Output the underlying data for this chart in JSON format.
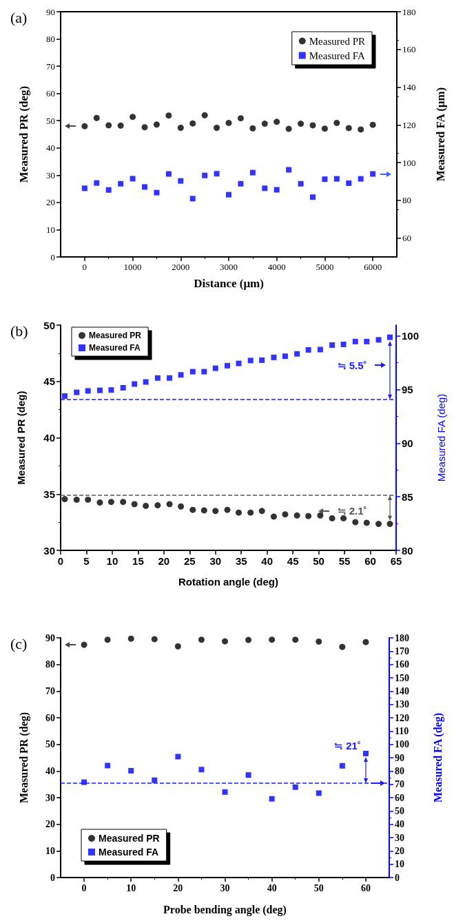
{
  "chart_data": [
    {
      "type": "scatter",
      "title": "(a)",
      "xlabel": "Distance (μm)",
      "ylabel": "Measured PR (deg)",
      "y2label": "Measured FA (μm)",
      "x": [
        0,
        250,
        500,
        750,
        1000,
        1250,
        1500,
        1750,
        2000,
        2250,
        2500,
        2750,
        3000,
        3250,
        3500,
        3750,
        4000,
        4250,
        4500,
        4750,
        5000,
        5250,
        5500,
        5750,
        6000
      ],
      "series": [
        {
          "name": "Measured PR",
          "color": "#000000",
          "marker": "circle",
          "values": [
            48.0,
            51.0,
            48.3,
            48.2,
            51.4,
            47.6,
            48.6,
            51.9,
            47.4,
            49.0,
            52.0,
            47.4,
            49.2,
            50.9,
            47.2,
            48.9,
            49.6,
            47.0,
            48.9,
            48.3,
            47.1,
            49.2,
            47.3,
            46.8,
            48.5
          ]
        },
        {
          "name": "Measured FA",
          "color": "#0000ff",
          "marker": "square",
          "axis": "y2",
          "values": [
            86.4,
            89.2,
            85.5,
            88.8,
            91.5,
            87.1,
            84.1,
            94.0,
            90.3,
            80.9,
            93.2,
            94.1,
            83.0,
            88.8,
            94.7,
            86.4,
            85.6,
            96.2,
            88.8,
            81.7,
            91.2,
            91.4,
            89.1,
            91.4,
            94.0
          ]
        }
      ],
      "xlim": [
        -500,
        6500
      ],
      "xticks": [
        0,
        1000,
        2000,
        3000,
        4000,
        5000,
        6000
      ],
      "ylim": [
        0,
        90
      ],
      "yticks": [
        0,
        10,
        20,
        30,
        40,
        50,
        60,
        70,
        80,
        90
      ],
      "y2lim": [
        50,
        180
      ],
      "y2ticks": [
        60,
        80,
        100,
        120,
        140,
        160,
        180
      ],
      "legend": "top right"
    },
    {
      "type": "scatter",
      "title": "(b)",
      "xlabel": "Rotation angle (deg)",
      "ylabel": "Measured PR (deg)",
      "y2label": "Measured FA (deg)",
      "x": [
        0.8,
        3.1,
        5.3,
        7.6,
        9.8,
        12.1,
        14.3,
        16.5,
        18.8,
        21.1,
        23.3,
        25.6,
        27.8,
        30.0,
        32.3,
        34.5,
        36.8,
        39.0,
        41.3,
        43.5,
        45.8,
        48.0,
        50.3,
        52.6,
        54.8,
        57.1,
        59.3,
        61.6,
        63.8
      ],
      "series": [
        {
          "name": "Measured PR",
          "color": "#000000",
          "marker": "circle",
          "values": [
            34.55,
            34.5,
            34.5,
            34.25,
            34.3,
            34.3,
            34.1,
            33.95,
            34.0,
            34.1,
            33.9,
            33.6,
            33.55,
            33.5,
            33.6,
            33.35,
            33.35,
            33.5,
            33.0,
            33.2,
            33.1,
            33.05,
            33.1,
            32.85,
            32.85,
            32.5,
            32.45,
            32.35,
            32.35
          ]
        },
        {
          "name": "Measured FA",
          "color": "#0000ff",
          "marker": "square",
          "axis": "y2",
          "values": [
            94.39,
            94.73,
            94.87,
            94.92,
            94.95,
            95.16,
            95.51,
            95.7,
            96.07,
            96.07,
            96.36,
            96.66,
            96.66,
            96.98,
            97.22,
            97.43,
            97.7,
            97.73,
            97.99,
            98.1,
            98.32,
            98.69,
            98.72,
            99.14,
            99.2,
            99.47,
            99.47,
            99.63,
            99.87
          ]
        }
      ],
      "xlim": [
        0,
        65
      ],
      "xticks": [
        0,
        5,
        10,
        15,
        20,
        25,
        30,
        35,
        40,
        45,
        50,
        55,
        60,
        65
      ],
      "ylim": [
        30,
        50
      ],
      "yticks": [
        30,
        35,
        40,
        45,
        50
      ],
      "y2lim": [
        80,
        101
      ],
      "y2ticks": [
        80,
        85,
        90,
        95,
        100
      ],
      "ref_lines": [
        {
          "axis": "y2",
          "value": 94.1,
          "color": "#1a1aff",
          "line_style": "dashed"
        },
        {
          "axis": "y",
          "value": 34.9,
          "color": "#555555",
          "line_style": "dashed"
        }
      ],
      "annotations": [
        "≒ 5.5˚",
        "≒ 2.1˚"
      ],
      "legend": "top left"
    },
    {
      "type": "scatter",
      "title": "(c)",
      "xlabel": "Probe bending angle (deg)",
      "ylabel": "Measured PR (deg)",
      "y2label": "Measured FA (deg)",
      "x": [
        0,
        5,
        10,
        15,
        20,
        25,
        30,
        35,
        40,
        45,
        50,
        55,
        60
      ],
      "series": [
        {
          "name": "Measured PR",
          "color": "#000000",
          "marker": "circle",
          "values": [
            87.4,
            89.3,
            89.7,
            89.5,
            86.8,
            89.3,
            88.7,
            89.2,
            89.3,
            89.3,
            88.6,
            86.6,
            88.4
          ]
        },
        {
          "name": "Measured FA",
          "color": "#0000ff",
          "marker": "square",
          "axis": "y2",
          "values": [
            71.6,
            84.1,
            80.2,
            73.1,
            90.8,
            81.1,
            64.2,
            77.0,
            59.1,
            67.9,
            63.4,
            83.9,
            93.1
          ]
        }
      ],
      "xlim": [
        -5,
        65
      ],
      "xticks": [
        0,
        10,
        20,
        30,
        40,
        50,
        60
      ],
      "ylim": [
        0,
        90
      ],
      "yticks": [
        0,
        10,
        20,
        30,
        40,
        50,
        60,
        70,
        80,
        90
      ],
      "y2lim": [
        0,
        180
      ],
      "y2ticks": [
        0,
        10,
        20,
        30,
        40,
        50,
        60,
        70,
        80,
        90,
        100,
        110,
        120,
        130,
        140,
        150,
        160,
        170,
        180
      ],
      "ref_lines": [
        {
          "axis": "y2",
          "value": 70.9,
          "color": "#1a1aff",
          "line_style": "dashed"
        }
      ],
      "annotations": [
        "≒ 21˚"
      ],
      "legend": "bottom left"
    }
  ]
}
